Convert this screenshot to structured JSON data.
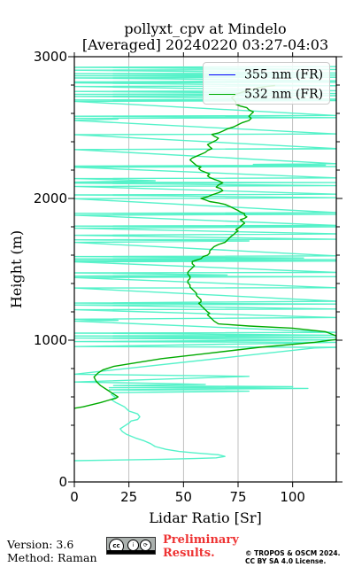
{
  "header": {
    "title_line1": "pollyxt_cpv at Mindelo",
    "title_line2": "[Averaged] 20240220 03:27-04:03"
  },
  "footer": {
    "version": "Version: 3.6",
    "method": "Method: Raman",
    "preliminary_line1": "Preliminary",
    "preliminary_line2": "Results.",
    "copyright_line1": "© TROPOS & OSCM 2024.",
    "copyright_line2": "CC BY SA 4.0 License.",
    "license_icon": "cc-by-sa-icon"
  },
  "colors": {
    "series_355": "#0000ff",
    "series_532": "#00aa00",
    "series_355_visible": "#55f2c9",
    "grid": "#b0b0b0",
    "preliminary": "#ee3333"
  },
  "chart_data": {
    "type": "line",
    "xlabel": "Lidar Ratio [Sr]",
    "ylabel": "Height (m)",
    "xlim": [
      0,
      120
    ],
    "ylim": [
      0,
      3000
    ],
    "xticks": [
      0,
      25,
      50,
      75,
      100
    ],
    "yticks": [
      0,
      1000,
      2000,
      3000
    ],
    "grid": "vertical",
    "legend_position": "top-right",
    "series": [
      {
        "name": "355 nm (FR)",
        "points": [
          [
            0,
            150
          ],
          [
            40,
            160
          ],
          [
            55,
            165
          ],
          [
            65,
            170
          ],
          [
            69,
            180
          ],
          [
            66,
            192
          ],
          [
            55,
            205
          ],
          [
            48,
            215
          ],
          [
            42,
            230
          ],
          [
            37,
            250
          ],
          [
            35,
            270
          ],
          [
            32,
            290
          ],
          [
            28,
            310
          ],
          [
            24,
            335
          ],
          [
            22,
            355
          ],
          [
            21,
            375
          ],
          [
            23,
            395
          ],
          [
            25,
            415
          ],
          [
            26,
            430
          ],
          [
            29,
            440
          ],
          [
            30,
            460
          ],
          [
            29,
            480
          ],
          [
            27,
            490
          ],
          [
            25,
            500
          ],
          [
            24,
            515
          ],
          [
            23,
            530
          ],
          [
            21,
            545
          ],
          [
            19,
            560
          ],
          [
            18,
            570
          ],
          [
            17,
            583
          ],
          [
            19,
            596
          ],
          [
            18,
            605
          ],
          [
            17,
            618
          ],
          [
            18,
            630
          ],
          [
            80,
            640
          ],
          [
            16,
            650
          ],
          [
            107,
            660
          ],
          [
            16,
            665
          ],
          [
            100,
            672
          ],
          [
            18,
            680
          ],
          [
            60,
            688
          ],
          [
            40,
            695
          ],
          [
            20,
            700
          ],
          [
            0,
            705
          ],
          [
            80,
            745
          ],
          [
            0,
            760
          ],
          [
            110,
            945
          ],
          [
            120,
            950
          ],
          [
            0,
            955
          ],
          [
            103,
            980
          ],
          [
            120,
            985
          ],
          [
            0,
            990
          ],
          [
            120,
            1002
          ],
          [
            0,
            1015
          ],
          [
            120,
            1020
          ],
          [
            0,
            1030
          ],
          [
            120,
            1035
          ],
          [
            0,
            1050
          ],
          [
            120,
            1055
          ],
          [
            0,
            1135
          ],
          [
            20,
            1140
          ],
          [
            0,
            1148
          ],
          [
            120,
            1160
          ],
          [
            0,
            1215
          ],
          [
            120,
            1220
          ],
          [
            0,
            1248
          ],
          [
            120,
            1255
          ],
          [
            0,
            1262
          ],
          [
            120,
            1275
          ],
          [
            0,
            1368
          ],
          [
            120,
            1370
          ],
          [
            0,
            1442
          ],
          [
            120,
            1448
          ],
          [
            0,
            1452
          ],
          [
            70,
            1460
          ],
          [
            0,
            1475
          ],
          [
            120,
            1478
          ],
          [
            0,
            1553
          ],
          [
            120,
            1558
          ],
          [
            0,
            1563
          ],
          [
            120,
            1568
          ],
          [
            0,
            1574
          ],
          [
            105,
            1580
          ],
          [
            0,
            1590
          ],
          [
            120,
            1595
          ],
          [
            0,
            1690
          ],
          [
            80,
            1700
          ],
          [
            0,
            1708
          ],
          [
            120,
            1712
          ],
          [
            0,
            1740
          ],
          [
            120,
            1750
          ],
          [
            0,
            1790
          ],
          [
            120,
            1800
          ],
          [
            0,
            1805
          ],
          [
            120,
            1810
          ],
          [
            0,
            1882
          ],
          [
            120,
            1888
          ],
          [
            0,
            1895
          ],
          [
            120,
            1900
          ],
          [
            0,
            1998
          ],
          [
            120,
            2005
          ],
          [
            0,
            2025
          ],
          [
            120,
            2030
          ],
          [
            0,
            2085
          ],
          [
            120,
            2090
          ],
          [
            0,
            2108
          ],
          [
            120,
            2112
          ],
          [
            0,
            2115
          ],
          [
            37,
            2125
          ],
          [
            0,
            2140
          ],
          [
            120,
            2145
          ],
          [
            0,
            2220
          ],
          [
            120,
            2225
          ],
          [
            0,
            2228
          ],
          [
            115,
            2235
          ],
          [
            82,
            2240
          ],
          [
            120,
            2245
          ],
          [
            0,
            2345
          ],
          [
            120,
            2350
          ],
          [
            0,
            2345
          ],
          [
            120,
            2352
          ],
          [
            0,
            2450
          ],
          [
            120,
            2455
          ],
          [
            0,
            2550
          ],
          [
            20,
            2560
          ],
          [
            0,
            2565
          ],
          [
            120,
            2570
          ],
          [
            0,
            2580
          ],
          [
            120,
            2585
          ],
          [
            0,
            2685
          ],
          [
            120,
            2690
          ],
          [
            0,
            2695
          ],
          [
            120,
            2700
          ],
          [
            0,
            2720
          ],
          [
            120,
            2725
          ],
          [
            0,
            2735
          ],
          [
            120,
            2740
          ],
          [
            0,
            2755
          ],
          [
            120,
            2760
          ],
          [
            0,
            2790
          ],
          [
            120,
            2795
          ],
          [
            0,
            2815
          ],
          [
            120,
            2820
          ],
          [
            0,
            2822
          ],
          [
            120,
            2830
          ],
          [
            0,
            2850
          ],
          [
            120,
            2855
          ],
          [
            0,
            2865
          ],
          [
            120,
            2870
          ],
          [
            0,
            2880
          ],
          [
            120,
            2885
          ],
          [
            0,
            2905
          ],
          [
            120,
            2910
          ],
          [
            0,
            2925
          ],
          [
            120,
            2930
          ]
        ]
      },
      {
        "name": "532 nm (FR)",
        "points": [
          [
            0,
            520
          ],
          [
            4,
            530
          ],
          [
            8,
            545
          ],
          [
            12,
            560
          ],
          [
            16,
            578
          ],
          [
            19,
            590
          ],
          [
            20,
            600
          ],
          [
            18,
            620
          ],
          [
            15,
            650
          ],
          [
            12,
            680
          ],
          [
            10,
            710
          ],
          [
            9,
            740
          ],
          [
            11,
            770
          ],
          [
            13,
            790
          ],
          [
            18,
            815
          ],
          [
            28,
            840
          ],
          [
            40,
            870
          ],
          [
            60,
            905
          ],
          [
            85,
            950
          ],
          [
            110,
            985
          ],
          [
            120,
            1005
          ],
          [
            120,
            1030
          ],
          [
            115,
            1060
          ],
          [
            100,
            1085
          ],
          [
            80,
            1100
          ],
          [
            66,
            1115
          ],
          [
            64,
            1135
          ],
          [
            63,
            1150
          ],
          [
            62,
            1165
          ],
          [
            61,
            1178
          ],
          [
            62,
            1190
          ],
          [
            61,
            1200
          ],
          [
            60,
            1215
          ],
          [
            59,
            1230
          ],
          [
            58,
            1245
          ],
          [
            57,
            1260
          ],
          [
            58,
            1270
          ],
          [
            58,
            1285
          ],
          [
            57,
            1300
          ],
          [
            56,
            1315
          ],
          [
            56,
            1330
          ],
          [
            55,
            1345
          ],
          [
            54,
            1360
          ],
          [
            53,
            1375
          ],
          [
            53,
            1390
          ],
          [
            52,
            1405
          ],
          [
            52,
            1420
          ],
          [
            53,
            1435
          ],
          [
            53,
            1450
          ],
          [
            52,
            1465
          ],
          [
            52,
            1480
          ],
          [
            53,
            1495
          ],
          [
            54,
            1510
          ],
          [
            55,
            1525
          ],
          [
            54,
            1540
          ],
          [
            54,
            1555
          ],
          [
            56,
            1565
          ],
          [
            58,
            1575
          ],
          [
            59,
            1590
          ],
          [
            61,
            1600
          ],
          [
            62,
            1615
          ],
          [
            62,
            1630
          ],
          [
            63,
            1645
          ],
          [
            64,
            1660
          ],
          [
            66,
            1675
          ],
          [
            69,
            1690
          ],
          [
            70,
            1705
          ],
          [
            71,
            1720
          ],
          [
            72,
            1735
          ],
          [
            73,
            1745
          ],
          [
            74,
            1760
          ],
          [
            75,
            1770
          ],
          [
            74,
            1780
          ],
          [
            75,
            1790
          ],
          [
            76,
            1800
          ],
          [
            77,
            1815
          ],
          [
            78,
            1825
          ],
          [
            77,
            1840
          ],
          [
            76,
            1850
          ],
          [
            78,
            1860
          ],
          [
            79,
            1870
          ],
          [
            78,
            1880
          ],
          [
            78,
            1892
          ],
          [
            76,
            1905
          ],
          [
            75,
            1915
          ],
          [
            73,
            1930
          ],
          [
            71,
            1945
          ],
          [
            69,
            1958
          ],
          [
            66,
            1968
          ],
          [
            62,
            1978
          ],
          [
            60,
            1990
          ],
          [
            58,
            2000
          ],
          [
            61,
            2012
          ],
          [
            63,
            2025
          ],
          [
            66,
            2040
          ],
          [
            68,
            2055
          ],
          [
            67,
            2070
          ],
          [
            65,
            2080
          ],
          [
            66,
            2095
          ],
          [
            68,
            2110
          ],
          [
            66,
            2125
          ],
          [
            64,
            2135
          ],
          [
            62,
            2148
          ],
          [
            61,
            2160
          ],
          [
            62,
            2172
          ],
          [
            60,
            2185
          ],
          [
            58,
            2197
          ],
          [
            57,
            2210
          ],
          [
            58,
            2222
          ],
          [
            56,
            2232
          ],
          [
            55,
            2245
          ],
          [
            54,
            2258
          ],
          [
            53,
            2272
          ],
          [
            54,
            2285
          ],
          [
            56,
            2298
          ],
          [
            58,
            2312
          ],
          [
            60,
            2325
          ],
          [
            61,
            2338
          ],
          [
            63,
            2352
          ],
          [
            62,
            2365
          ],
          [
            61,
            2380
          ],
          [
            63,
            2395
          ],
          [
            65,
            2410
          ],
          [
            66,
            2425
          ],
          [
            64,
            2440
          ],
          [
            63,
            2452
          ],
          [
            66,
            2462
          ],
          [
            68,
            2475
          ],
          [
            70,
            2490
          ],
          [
            73,
            2505
          ],
          [
            75,
            2520
          ],
          [
            77,
            2535
          ],
          [
            80,
            2550
          ],
          [
            81,
            2565
          ],
          [
            80,
            2580
          ],
          [
            81,
            2595
          ],
          [
            82,
            2610
          ],
          [
            80,
            2625
          ],
          [
            79,
            2640
          ],
          [
            76,
            2652
          ],
          [
            74,
            2665
          ],
          [
            74,
            2680
          ],
          [
            73,
            2695
          ],
          [
            72,
            2710
          ],
          [
            73,
            2722
          ],
          [
            74,
            2735
          ],
          [
            76,
            2745
          ],
          [
            78,
            2755
          ],
          [
            80,
            2765
          ],
          [
            82,
            2772
          ],
          [
            84,
            2780
          ],
          [
            88,
            2790
          ],
          [
            92,
            2797
          ]
        ]
      }
    ]
  }
}
